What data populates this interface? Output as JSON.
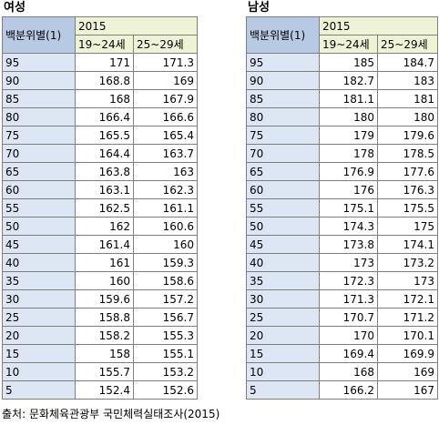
{
  "female": {
    "title": "여성",
    "header_col": "백분위별(1)",
    "year": "2015",
    "age_groups": [
      "19~24세",
      "25~29세"
    ],
    "rows": [
      {
        "pct": "95",
        "v1": "171",
        "v2": "171.3"
      },
      {
        "pct": "90",
        "v1": "168.8",
        "v2": "169"
      },
      {
        "pct": "85",
        "v1": "168",
        "v2": "167.9"
      },
      {
        "pct": "80",
        "v1": "166.4",
        "v2": "166.6"
      },
      {
        "pct": "75",
        "v1": "165.5",
        "v2": "165.4"
      },
      {
        "pct": "70",
        "v1": "164.4",
        "v2": "163.7"
      },
      {
        "pct": "65",
        "v1": "163.8",
        "v2": "163"
      },
      {
        "pct": "60",
        "v1": "163.1",
        "v2": "162.3"
      },
      {
        "pct": "55",
        "v1": "162.5",
        "v2": "161.1"
      },
      {
        "pct": "50",
        "v1": "162",
        "v2": "160.6"
      },
      {
        "pct": "45",
        "v1": "161.4",
        "v2": "160"
      },
      {
        "pct": "40",
        "v1": "161",
        "v2": "159.3"
      },
      {
        "pct": "35",
        "v1": "160",
        "v2": "158.6"
      },
      {
        "pct": "30",
        "v1": "159.6",
        "v2": "157.2"
      },
      {
        "pct": "25",
        "v1": "158.8",
        "v2": "156.7"
      },
      {
        "pct": "20",
        "v1": "158.2",
        "v2": "155.3"
      },
      {
        "pct": "15",
        "v1": "158",
        "v2": "155.1"
      },
      {
        "pct": "10",
        "v1": "155.7",
        "v2": "153.2"
      },
      {
        "pct": "5",
        "v1": "152.4",
        "v2": "152.6"
      }
    ]
  },
  "male": {
    "title": "남성",
    "header_col": "백분위별(1)",
    "year": "2015",
    "age_groups": [
      "19~24세",
      "25~29세"
    ],
    "rows": [
      {
        "pct": "95",
        "v1": "185",
        "v2": "184.7"
      },
      {
        "pct": "90",
        "v1": "182.7",
        "v2": "183"
      },
      {
        "pct": "85",
        "v1": "181.1",
        "v2": "181"
      },
      {
        "pct": "80",
        "v1": "180",
        "v2": "180"
      },
      {
        "pct": "75",
        "v1": "179",
        "v2": "179.6"
      },
      {
        "pct": "70",
        "v1": "178",
        "v2": "178.5"
      },
      {
        "pct": "65",
        "v1": "176.9",
        "v2": "177.6"
      },
      {
        "pct": "60",
        "v1": "176",
        "v2": "176.3"
      },
      {
        "pct": "55",
        "v1": "175.1",
        "v2": "175.5"
      },
      {
        "pct": "50",
        "v1": "174.3",
        "v2": "175"
      },
      {
        "pct": "45",
        "v1": "173.8",
        "v2": "174.1"
      },
      {
        "pct": "40",
        "v1": "173",
        "v2": "173.2"
      },
      {
        "pct": "35",
        "v1": "172.3",
        "v2": "173"
      },
      {
        "pct": "30",
        "v1": "171.3",
        "v2": "172.1"
      },
      {
        "pct": "25",
        "v1": "170.7",
        "v2": "171.2"
      },
      {
        "pct": "20",
        "v1": "170",
        "v2": "170.1"
      },
      {
        "pct": "15",
        "v1": "169.4",
        "v2": "169.9"
      },
      {
        "pct": "10",
        "v1": "168",
        "v2": "169"
      },
      {
        "pct": "5",
        "v1": "166.2",
        "v2": "167"
      }
    ]
  },
  "source": "출처: 문화체육관광부 국민체력실태조사(2015)"
}
